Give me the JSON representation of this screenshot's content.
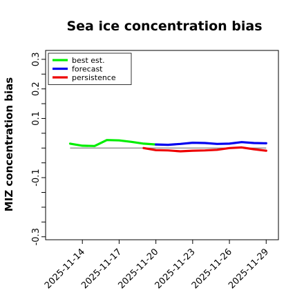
{
  "chart_data": {
    "type": "line",
    "title": "Sea ice concentration bias",
    "xlabel": "",
    "ylabel": "MIZ concentration bias",
    "xlim": [
      "2025-11-11",
      "2025-11-30"
    ],
    "ylim": [
      -0.31,
      0.33
    ],
    "yticks": [
      {
        "value": 0.3,
        "label": "0.3"
      },
      {
        "value": 0.25,
        "label": ""
      },
      {
        "value": 0.2,
        "label": "0.2"
      },
      {
        "value": 0.15,
        "label": ""
      },
      {
        "value": 0.1,
        "label": "0.1"
      },
      {
        "value": 0.05,
        "label": ""
      },
      {
        "value": 0.0,
        "label": ""
      },
      {
        "value": -0.05,
        "label": ""
      },
      {
        "value": -0.1,
        "label": "-0.1"
      },
      {
        "value": -0.15,
        "label": ""
      },
      {
        "value": -0.2,
        "label": ""
      },
      {
        "value": -0.25,
        "label": ""
      },
      {
        "value": -0.3,
        "label": "-0.3"
      }
    ],
    "xticks": [
      {
        "date": "2025-11-14",
        "label": "2025-11-14",
        "color": "#000000"
      },
      {
        "date": "2025-11-17",
        "label": "2025-11-17",
        "color": "#000000"
      },
      {
        "date": "2025-11-20",
        "label": "2025-11-20",
        "color": "#228b22"
      },
      {
        "date": "2025-11-23",
        "label": "2025-11-23",
        "color": "#000000"
      },
      {
        "date": "2025-11-26",
        "label": "2025-11-26",
        "color": "#000000"
      },
      {
        "date": "2025-11-29",
        "label": "2025-11-29",
        "color": "#000000"
      }
    ],
    "zero_line": {
      "value": 0,
      "color": "#808080",
      "from": "2025-11-13",
      "to": "2025-11-29"
    },
    "legend": {
      "position": "top-left"
    },
    "series": [
      {
        "name": "best est.",
        "color": "#00ee00",
        "points": [
          {
            "x": "2025-11-13",
            "y": 0.015
          },
          {
            "x": "2025-11-14",
            "y": 0.008
          },
          {
            "x": "2025-11-15",
            "y": 0.007
          },
          {
            "x": "2025-11-16",
            "y": 0.027
          },
          {
            "x": "2025-11-17",
            "y": 0.026
          },
          {
            "x": "2025-11-18",
            "y": 0.021
          },
          {
            "x": "2025-11-19",
            "y": 0.015
          },
          {
            "x": "2025-11-20",
            "y": 0.012
          }
        ]
      },
      {
        "name": "forecast",
        "color": "#0000ee",
        "points": [
          {
            "x": "2025-11-20",
            "y": 0.012
          },
          {
            "x": "2025-11-21",
            "y": 0.011
          },
          {
            "x": "2025-11-22",
            "y": 0.014
          },
          {
            "x": "2025-11-23",
            "y": 0.018
          },
          {
            "x": "2025-11-24",
            "y": 0.017
          },
          {
            "x": "2025-11-25",
            "y": 0.014
          },
          {
            "x": "2025-11-26",
            "y": 0.015
          },
          {
            "x": "2025-11-27",
            "y": 0.02
          },
          {
            "x": "2025-11-28",
            "y": 0.017
          },
          {
            "x": "2025-11-29",
            "y": 0.016
          }
        ]
      },
      {
        "name": "persistence",
        "color": "#ee0000",
        "points": [
          {
            "x": "2025-11-19",
            "y": 0.0
          },
          {
            "x": "2025-11-20",
            "y": -0.007
          },
          {
            "x": "2025-11-21",
            "y": -0.008
          },
          {
            "x": "2025-11-22",
            "y": -0.011
          },
          {
            "x": "2025-11-23",
            "y": -0.009
          },
          {
            "x": "2025-11-24",
            "y": -0.008
          },
          {
            "x": "2025-11-25",
            "y": -0.006
          },
          {
            "x": "2025-11-26",
            "y": 0.0
          },
          {
            "x": "2025-11-27",
            "y": 0.002
          },
          {
            "x": "2025-11-28",
            "y": -0.004
          },
          {
            "x": "2025-11-29",
            "y": -0.009
          }
        ]
      }
    ]
  }
}
